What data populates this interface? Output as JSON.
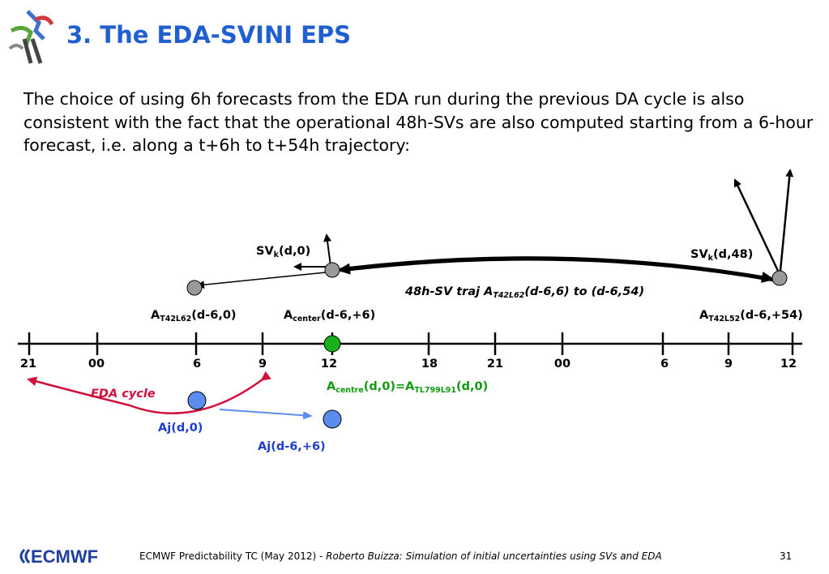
{
  "title": "3. The EDA-SVINI EPS",
  "intro": "The choice of using 6h forecasts from the EDA run during the previous DA cycle is also consistent with the fact that the operational 48h-SVs are also computed starting from a 6-hour forecast, i.e. along a t+6h to t+54h trajectory:",
  "ticks": [
    "21",
    "00",
    "6",
    "9",
    "12",
    "18",
    "21",
    "00",
    "6",
    "9",
    "12"
  ],
  "labels": {
    "svk_0": {
      "pre": "SV",
      "sub": "k",
      "post": "(d,0)"
    },
    "svk_48": {
      "pre": "SV",
      "sub": "k",
      "post": "(d,48)"
    },
    "traj": {
      "pre": "48h-SV traj A",
      "sub": "T42L62",
      "post": "(d-6,6) to (d-6,54)"
    },
    "a_t42l62": {
      "pre": "A",
      "sub": "T42L62",
      "post": "(d-6,0)"
    },
    "a_center": {
      "pre": "A",
      "sub": "center",
      "post": "(d-6,+6)"
    },
    "a_t42l52": {
      "pre": "A",
      "sub": "T42L52",
      "post": "(d-6,+54)"
    },
    "a_centre_green": {
      "pre": "A",
      "sub": "centre",
      "mid": "(d,0)=A",
      "sub2": "TL799L91",
      "post": "(d,0)"
    },
    "eda_cycle": "EDA cycle",
    "aj_d0": "Aj(d,0)",
    "aj_d6": "Aj(d-6,+6)"
  },
  "colors": {
    "title": "#1f5fcf",
    "blue_text": "#1f3fcf",
    "green": "#119911",
    "red": "#d0103a",
    "grey_node": "#999999",
    "blue_node": "#5b8def"
  },
  "footer": {
    "text": "ECMWF Predictability TC (May 2012) - ",
    "italic": "Roberto Buizza: Simulation of initial uncertainties using SVs and EDA",
    "page": "31",
    "logo": "ECMWF"
  }
}
